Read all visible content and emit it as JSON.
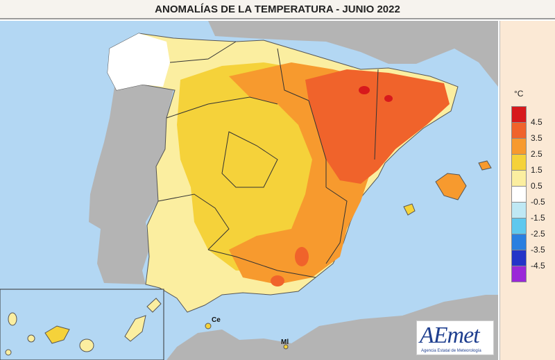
{
  "title": "ANOMALÍAS DE LA TEMPERATURA - JUNIO 2022",
  "legend": {
    "unit": "°C",
    "bins": [
      {
        "label": "4.5",
        "color": "#d7191c"
      },
      {
        "label": "3.5",
        "color": "#f0632b"
      },
      {
        "label": "2.5",
        "color": "#f79a2e"
      },
      {
        "label": "1.5",
        "color": "#f5d23a"
      },
      {
        "label": "0.5",
        "color": "#fbeea0"
      },
      {
        "label": "-0.5",
        "color": "#ffffff"
      },
      {
        "label": "-1.5",
        "color": "#bfe8f4"
      },
      {
        "label": "-2.5",
        "color": "#5ec8ee"
      },
      {
        "label": "-3.5",
        "color": "#2a7fe0"
      },
      {
        "label": "-4.5",
        "color": "#2434c8"
      },
      {
        "label": "",
        "color": "#9a28d8"
      }
    ]
  },
  "cities": {
    "ceuta": "Ce",
    "melilla": "Ml"
  },
  "logo": {
    "name": "AEmet",
    "subtitle": "Agencia Estatal de Meteorología"
  },
  "colors": {
    "sea": "#b3d7f3",
    "land_other": "#b4b4b4"
  }
}
